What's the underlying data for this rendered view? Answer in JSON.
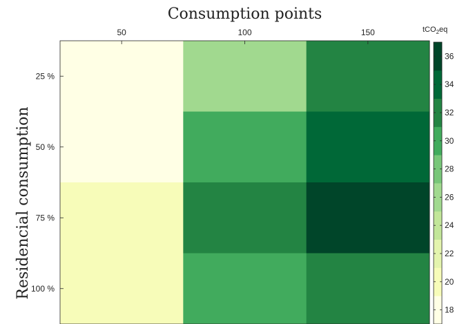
{
  "chart_data": {
    "type": "heatmap",
    "title": "",
    "xlabel": "Consumption points",
    "ylabel": "Residencial consumption",
    "x_categories": [
      "50",
      "100",
      "150"
    ],
    "y_categories": [
      "25 %",
      "50 %",
      "75 %",
      "100 %"
    ],
    "values": [
      [
        18,
        26,
        31
      ],
      [
        18,
        29.5,
        33
      ],
      [
        20,
        31,
        37
      ],
      [
        20,
        29.5,
        31
      ]
    ],
    "colorbar": {
      "label": "tCO2eq",
      "label_main": "tCO",
      "label_sub": "2",
      "label_tail": "eq",
      "ticks": [
        18,
        20,
        22,
        24,
        26,
        28,
        30,
        32,
        34,
        36
      ],
      "tick_labels": [
        "18",
        "20",
        "22",
        "24",
        "26",
        "28",
        "30",
        "32",
        "34",
        "36"
      ],
      "range": [
        17,
        37
      ],
      "bins": [
        17,
        19,
        21,
        23,
        25,
        27,
        29,
        31,
        33,
        35,
        37
      ],
      "colors": [
        "#ffffe5",
        "#f7fcb9",
        "#e4f4ae",
        "#c2e699",
        "#a1d98f",
        "#78c679",
        "#41ab5d",
        "#238443",
        "#006837",
        "#004529"
      ]
    },
    "xaxis_position": "top",
    "grid": false
  }
}
